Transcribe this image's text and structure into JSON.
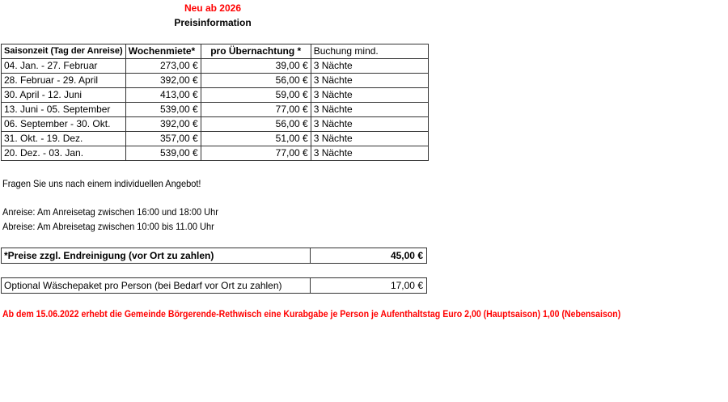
{
  "header": {
    "new_label": "Neu ab 2026",
    "title": "Preisinformation"
  },
  "table": {
    "columns": [
      "Saisonzeit (Tag der Anreise)",
      "Wochenmiete*",
      "pro Übernachtung *",
      "Buchung mind."
    ],
    "rows": [
      [
        "04. Jan. - 27. Februar",
        "273,00 €",
        "39,00 €",
        "3 Nächte"
      ],
      [
        "28. Februar - 29. April",
        "392,00 €",
        "56,00 €",
        "3 Nächte"
      ],
      [
        "30. April - 12. Juni",
        "413,00 €",
        "59,00 €",
        "3 Nächte"
      ],
      [
        "13. Juni - 05. September",
        "539,00 €",
        "77,00 €",
        "3 Nächte"
      ],
      [
        "06. September - 30. Okt.",
        "392,00 €",
        "56,00 €",
        "3 Nächte"
      ],
      [
        "31. Okt. - 19. Dez.",
        "357,00 €",
        "51,00 €",
        "3 Nächte"
      ],
      [
        "20. Dez. - 03. Jan.",
        "539,00 €",
        "77,00 €",
        "3 Nächte"
      ]
    ]
  },
  "notes": {
    "offer": "Fragen Sie uns nach einem individuellen Angebot!",
    "arrival": "Anreise:  Am Anreisetag zwischen 16:00 und 18:00 Uhr",
    "departure": "Abreise:  Am Abreisetag zwischen 10:00 bis 11.00 Uhr"
  },
  "cleaning": {
    "label": "*Preise zzgl. Endreinigung  (vor Ort zu zahlen)",
    "value": "45,00 €"
  },
  "linen": {
    "label": "Optional Wäschepaket pro Person (bei Bedarf vor Ort zu zahlen)",
    "value": "17,00 €"
  },
  "tax_notice": "Ab dem 15.06.2022 erhebt die Gemeinde Börgerende-Rethwisch eine Kurabgabe je Person je Aufenthaltstag Euro 2,00 (Hauptsaison) 1,00 (Nebensaison)",
  "colors": {
    "accent": "#ff0000"
  }
}
